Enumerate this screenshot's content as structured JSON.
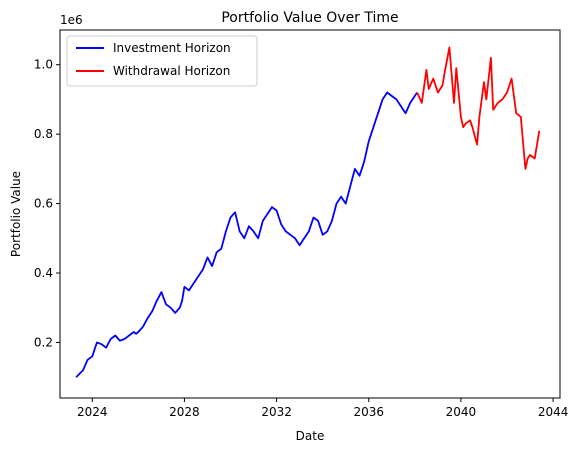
{
  "chart_data": {
    "type": "line",
    "title": "Portfolio Value Over Time",
    "xlabel": "Date",
    "ylabel": "Portfolio Value",
    "y_offset_label": "1e6",
    "xlim": [
      2022.6,
      2044.3
    ],
    "ylim": [
      0.04,
      1.1
    ],
    "x_ticks": [
      2024,
      2028,
      2032,
      2036,
      2040,
      2044
    ],
    "y_ticks": [
      0.2,
      0.4,
      0.6,
      0.8,
      1.0
    ],
    "x_tick_labels": [
      "2024",
      "2028",
      "2032",
      "2036",
      "2040",
      "2044"
    ],
    "y_tick_labels": [
      "0.2",
      "0.4",
      "0.6",
      "0.8",
      "1.0"
    ],
    "grid": false,
    "legend_position": "upper-left",
    "series": [
      {
        "name": "Investment Horizon",
        "color": "#0000ff",
        "x": [
          2023.3,
          2023.6,
          2023.8,
          2024.0,
          2024.2,
          2024.4,
          2024.5,
          2024.6,
          2024.8,
          2025.0,
          2025.2,
          2025.4,
          2025.6,
          2025.8,
          2025.9,
          2026.0,
          2026.2,
          2026.4,
          2026.6,
          2026.8,
          2027.0,
          2027.2,
          2027.4,
          2027.6,
          2027.8,
          2027.9,
          2028.0,
          2028.2,
          2028.4,
          2028.6,
          2028.8,
          2029.0,
          2029.2,
          2029.4,
          2029.6,
          2029.8,
          2030.0,
          2030.2,
          2030.4,
          2030.6,
          2030.8,
          2031.0,
          2031.2,
          2031.4,
          2031.6,
          2031.8,
          2032.0,
          2032.2,
          2032.4,
          2032.6,
          2032.8,
          2033.0,
          2033.2,
          2033.4,
          2033.6,
          2033.8,
          2034.0,
          2034.2,
          2034.4,
          2034.6,
          2034.8,
          2035.0,
          2035.2,
          2035.4,
          2035.6,
          2035.8,
          2036.0,
          2036.2,
          2036.4,
          2036.6,
          2036.8,
          2037.0,
          2037.2,
          2037.4,
          2037.6,
          2037.8,
          2038.0,
          2038.1
        ],
        "y": [
          0.1,
          0.12,
          0.15,
          0.16,
          0.2,
          0.195,
          0.19,
          0.185,
          0.21,
          0.22,
          0.205,
          0.21,
          0.22,
          0.23,
          0.225,
          0.23,
          0.245,
          0.27,
          0.29,
          0.32,
          0.345,
          0.31,
          0.3,
          0.285,
          0.3,
          0.32,
          0.36,
          0.35,
          0.37,
          0.39,
          0.41,
          0.445,
          0.42,
          0.46,
          0.47,
          0.52,
          0.56,
          0.575,
          0.52,
          0.5,
          0.535,
          0.52,
          0.5,
          0.55,
          0.57,
          0.59,
          0.58,
          0.54,
          0.52,
          0.51,
          0.5,
          0.48,
          0.5,
          0.52,
          0.56,
          0.55,
          0.51,
          0.52,
          0.55,
          0.6,
          0.62,
          0.6,
          0.65,
          0.7,
          0.68,
          0.72,
          0.78,
          0.82,
          0.86,
          0.9,
          0.92,
          0.91,
          0.9,
          0.88,
          0.86,
          0.89,
          0.91,
          0.92
        ]
      },
      {
        "name": "Withdrawal Horizon",
        "color": "#ff0000",
        "x": [
          2038.1,
          2038.3,
          2038.5,
          2038.6,
          2038.8,
          2039.0,
          2039.2,
          2039.3,
          2039.5,
          2039.7,
          2039.8,
          2040.0,
          2040.1,
          2040.2,
          2040.4,
          2040.5,
          2040.7,
          2040.8,
          2041.0,
          2041.1,
          2041.3,
          2041.4,
          2041.6,
          2041.8,
          2042.0,
          2042.2,
          2042.4,
          2042.6,
          2042.8,
          2042.9,
          2043.0,
          2043.2,
          2043.4
        ],
        "y": [
          0.92,
          0.89,
          0.985,
          0.93,
          0.96,
          0.92,
          0.94,
          0.98,
          1.05,
          0.89,
          0.99,
          0.85,
          0.82,
          0.83,
          0.84,
          0.82,
          0.77,
          0.85,
          0.95,
          0.9,
          1.02,
          0.87,
          0.89,
          0.9,
          0.92,
          0.96,
          0.86,
          0.85,
          0.7,
          0.73,
          0.74,
          0.73,
          0.81
        ]
      }
    ]
  }
}
